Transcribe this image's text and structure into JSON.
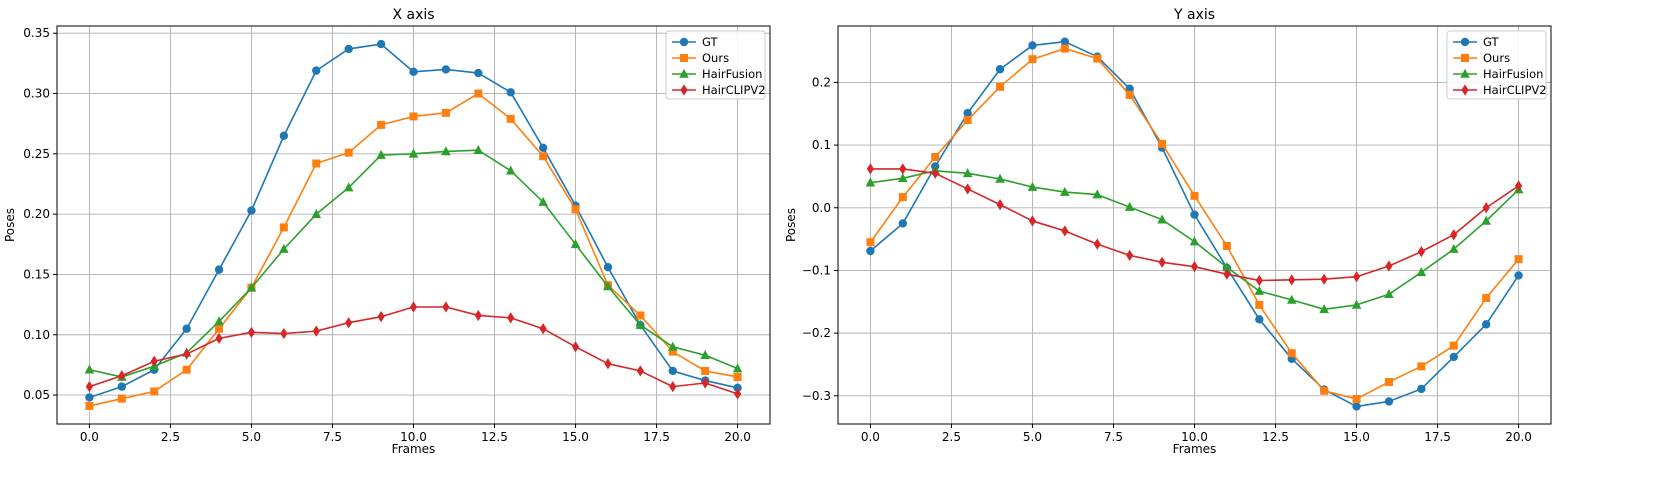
{
  "chart_data": [
    {
      "type": "line",
      "title": "X axis",
      "xlabel": "Frames",
      "ylabel": "Poses",
      "xlim": [
        -1,
        21
      ],
      "ylim": [
        0.026,
        0.356
      ],
      "xticks": [
        0.0,
        2.5,
        5.0,
        7.5,
        10.0,
        12.5,
        15.0,
        17.5,
        20.0
      ],
      "xtick_labels": [
        "0.0",
        "2.5",
        "5.0",
        "7.5",
        "10.0",
        "12.5",
        "15.0",
        "17.5",
        "20.0"
      ],
      "yticks": [
        0.05,
        0.1,
        0.15,
        0.2,
        0.25,
        0.3,
        0.35
      ],
      "ytick_labels": [
        "0.05",
        "0.10",
        "0.15",
        "0.20",
        "0.25",
        "0.30",
        "0.35"
      ],
      "grid": true,
      "legend_position": "top-right",
      "x": [
        0,
        1,
        2,
        3,
        4,
        5,
        6,
        7,
        8,
        9,
        10,
        11,
        12,
        13,
        14,
        15,
        16,
        17,
        18,
        19,
        20
      ],
      "series": [
        {
          "name": "GT",
          "color": "#1f77b4",
          "marker": "circle",
          "values": [
            0.048,
            0.057,
            0.071,
            0.105,
            0.154,
            0.203,
            0.265,
            0.319,
            0.337,
            0.341,
            0.318,
            0.32,
            0.317,
            0.301,
            0.255,
            0.207,
            0.156,
            0.108,
            0.07,
            0.062,
            0.056
          ]
        },
        {
          "name": "Ours",
          "color": "#ff7f0e",
          "marker": "square",
          "values": [
            0.041,
            0.047,
            0.053,
            0.071,
            0.105,
            0.139,
            0.189,
            0.242,
            0.251,
            0.274,
            0.281,
            0.284,
            0.3,
            0.279,
            0.248,
            0.204,
            0.141,
            0.116,
            0.086,
            0.07,
            0.065
          ]
        },
        {
          "name": "HairFusion",
          "color": "#2ca02c",
          "marker": "triangle",
          "values": [
            0.071,
            0.065,
            0.074,
            0.085,
            0.111,
            0.139,
            0.171,
            0.2,
            0.222,
            0.249,
            0.25,
            0.252,
            0.253,
            0.236,
            0.21,
            0.175,
            0.14,
            0.108,
            0.09,
            0.083,
            0.072
          ]
        },
        {
          "name": "HairCLIPV2",
          "color": "#d62728",
          "marker": "diamond",
          "values": [
            0.057,
            0.066,
            0.078,
            0.084,
            0.097,
            0.102,
            0.101,
            0.103,
            0.11,
            0.115,
            0.123,
            0.123,
            0.116,
            0.114,
            0.105,
            0.09,
            0.076,
            0.07,
            0.057,
            0.06,
            0.051
          ]
        }
      ]
    },
    {
      "type": "line",
      "title": "Y axis",
      "xlabel": "Frames",
      "ylabel": "Poses",
      "xlim": [
        -1,
        21
      ],
      "ylim": [
        -0.345,
        0.29
      ],
      "xticks": [
        0.0,
        2.5,
        5.0,
        7.5,
        10.0,
        12.5,
        15.0,
        17.5,
        20.0
      ],
      "xtick_labels": [
        "0.0",
        "2.5",
        "5.0",
        "7.5",
        "10.0",
        "12.5",
        "15.0",
        "17.5",
        "20.0"
      ],
      "yticks": [
        -0.3,
        -0.2,
        -0.1,
        0.0,
        0.1,
        0.2
      ],
      "ytick_labels": [
        "−0.3",
        "−0.2",
        "−0.1",
        "0.0",
        "0.1",
        "0.2"
      ],
      "grid": true,
      "legend_position": "top-right",
      "x": [
        0,
        1,
        2,
        3,
        4,
        5,
        6,
        7,
        8,
        9,
        10,
        11,
        12,
        13,
        14,
        15,
        16,
        17,
        18,
        19,
        20
      ],
      "series": [
        {
          "name": "GT",
          "color": "#1f77b4",
          "marker": "circle",
          "values": [
            -0.069,
            -0.025,
            0.066,
            0.151,
            0.221,
            0.259,
            0.265,
            0.241,
            0.19,
            0.096,
            -0.011,
            -0.096,
            -0.178,
            -0.241,
            -0.29,
            -0.317,
            -0.309,
            -0.289,
            -0.238,
            -0.186,
            -0.108
          ]
        },
        {
          "name": "Ours",
          "color": "#ff7f0e",
          "marker": "square",
          "values": [
            -0.055,
            0.017,
            0.081,
            0.14,
            0.193,
            0.237,
            0.254,
            0.238,
            0.18,
            0.102,
            0.019,
            -0.061,
            -0.155,
            -0.232,
            -0.292,
            -0.305,
            -0.278,
            -0.253,
            -0.22,
            -0.144,
            -0.082
          ]
        },
        {
          "name": "HairFusion",
          "color": "#2ca02c",
          "marker": "triangle",
          "values": [
            0.04,
            0.047,
            0.059,
            0.055,
            0.046,
            0.033,
            0.025,
            0.021,
            0.001,
            -0.019,
            -0.054,
            -0.095,
            -0.133,
            -0.147,
            -0.162,
            -0.155,
            -0.138,
            -0.103,
            -0.066,
            -0.021,
            0.029
          ]
        },
        {
          "name": "HairCLIPV2",
          "color": "#d62728",
          "marker": "diamond",
          "values": [
            0.062,
            0.062,
            0.055,
            0.03,
            0.005,
            -0.021,
            -0.037,
            -0.058,
            -0.076,
            -0.087,
            -0.094,
            -0.106,
            -0.116,
            -0.115,
            -0.114,
            -0.11,
            -0.093,
            -0.07,
            -0.043,
            0.0,
            0.035
          ]
        }
      ]
    }
  ]
}
